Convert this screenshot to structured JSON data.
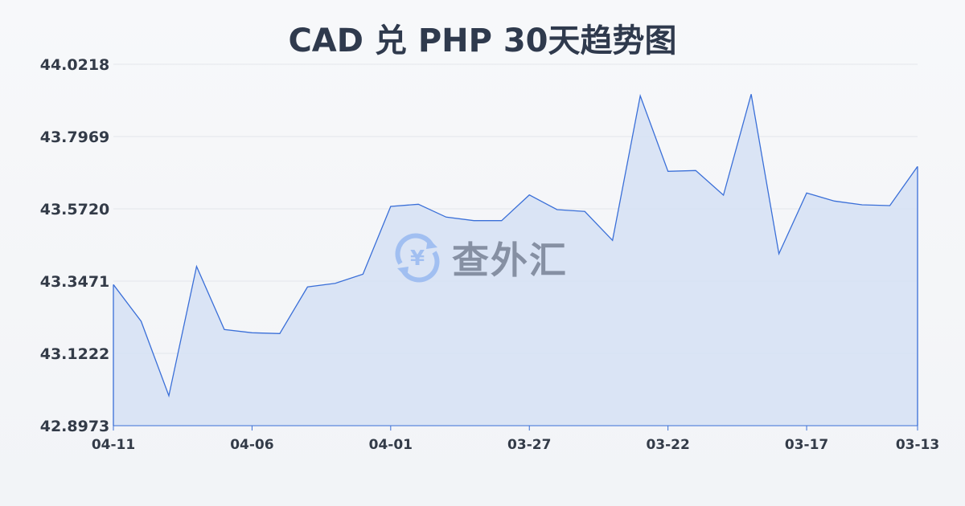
{
  "chart_data": {
    "type": "area",
    "title": "CAD 兑 PHP 30天趋势图",
    "xlabel": "",
    "ylabel": "",
    "categories": [
      "04-11",
      "04-10",
      "04-09",
      "04-08",
      "04-07",
      "04-06",
      "04-05",
      "04-04",
      "04-03",
      "04-02",
      "04-01",
      "03-31",
      "03-30",
      "03-29",
      "03-28",
      "03-27",
      "03-26",
      "03-25",
      "03-24",
      "03-23",
      "03-22",
      "03-21",
      "03-20",
      "03-19",
      "03-18",
      "03-17",
      "03-16",
      "03-15",
      "03-14",
      "03-13"
    ],
    "values": [
      43.3363,
      43.2222,
      42.9905,
      43.3928,
      43.1964,
      43.1864,
      43.1839,
      43.3289,
      43.3403,
      43.3688,
      43.5795,
      43.5862,
      43.5463,
      43.5353,
      43.5353,
      43.6152,
      43.5695,
      43.5638,
      43.4738,
      43.9236,
      43.6887,
      43.6912,
      43.6145,
      43.9286,
      43.4321,
      43.6212,
      43.5962,
      43.5845,
      43.582,
      43.7037
    ],
    "x_tick_labels": [
      "04-11",
      "04-06",
      "04-01",
      "03-27",
      "03-22",
      "03-17",
      "03-13"
    ],
    "y_tick_labels": [
      "44.0218",
      "43.7969",
      "43.5720",
      "43.3471",
      "43.1222",
      "42.8973"
    ],
    "ylim": [
      42.8973,
      44.0218
    ],
    "grid": true,
    "line_color": "#3a6fd8",
    "fill_color": "#d5e0f5"
  },
  "watermark": {
    "text": "查外汇",
    "icon": "yen-exchange-icon"
  }
}
